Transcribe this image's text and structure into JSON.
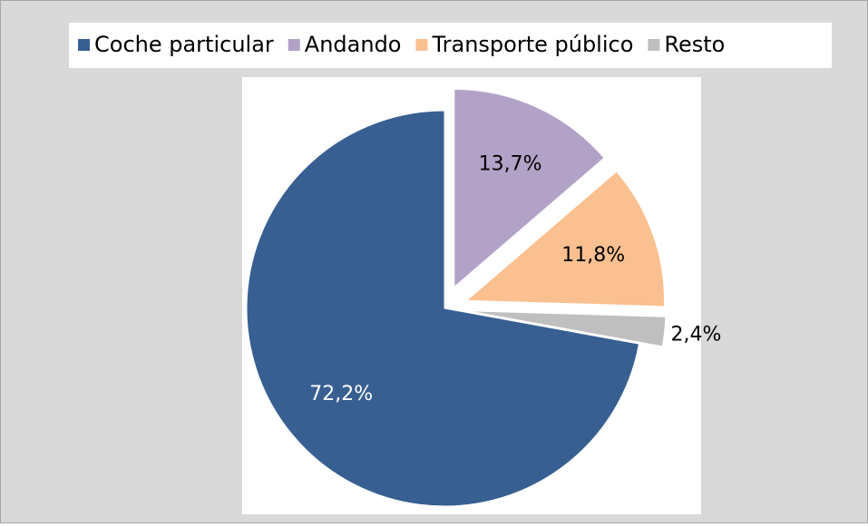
{
  "chart_data": {
    "type": "pie",
    "categories": [
      "Coche particular",
      "Andando",
      "Transporte público",
      "Resto"
    ],
    "values": [
      72.2,
      13.7,
      11.8,
      2.4
    ],
    "value_labels": [
      "72,2%",
      "13,7%",
      "11,8%",
      "2,4%"
    ],
    "colors": [
      "#375f91",
      "#b3a2c7",
      "#fac090",
      "#bfbfbf"
    ],
    "legend": "top"
  }
}
